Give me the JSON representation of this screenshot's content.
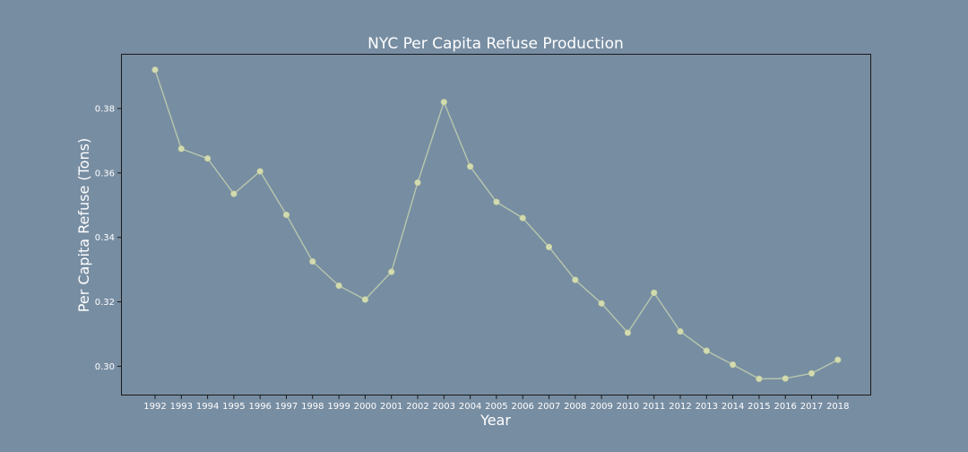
{
  "colors": {
    "background": "#778da2",
    "line": "#b7c7ad",
    "marker": "#d3dbb0",
    "axis": "#1a1a1a",
    "text": "#ffffff"
  },
  "chart_data": {
    "type": "line",
    "title": "NYC Per Capita Refuse Production",
    "xlabel": "Year",
    "ylabel": "Per Capita Refuse (Tons)",
    "x": [
      "1992",
      "1993",
      "1994",
      "1995",
      "1996",
      "1997",
      "1998",
      "1999",
      "2000",
      "2001",
      "2002",
      "2003",
      "2004",
      "2005",
      "2006",
      "2007",
      "2008",
      "2009",
      "2010",
      "2011",
      "2012",
      "2013",
      "2014",
      "2015",
      "2016",
      "2017",
      "2018"
    ],
    "series": [
      {
        "values": [
          0.392,
          0.3675,
          0.3645,
          0.3535,
          0.3605,
          0.347,
          0.3325,
          0.325,
          0.3207,
          0.3293,
          0.357,
          0.382,
          0.362,
          0.351,
          0.346,
          0.337,
          0.3268,
          0.3195,
          0.3104,
          0.3228,
          0.3108,
          0.3048,
          0.3005,
          0.2961,
          0.2962,
          0.2978,
          0.302
        ]
      }
    ],
    "yticks": [
      "0.30",
      "0.32",
      "0.34",
      "0.36",
      "0.38"
    ],
    "ylim": [
      0.2912,
      0.3967
    ],
    "grid": false,
    "legend": "none"
  }
}
